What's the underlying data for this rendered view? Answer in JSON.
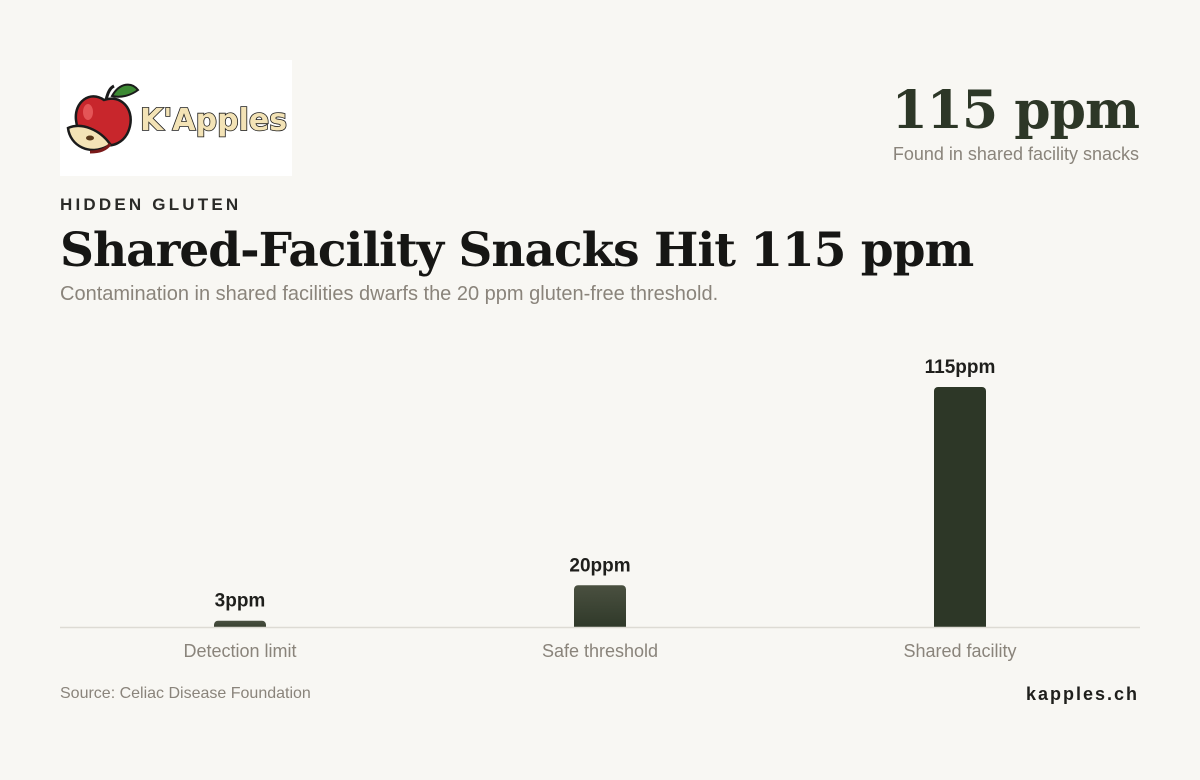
{
  "brand": {
    "logo_text": "K'Apples",
    "site": "kapples.ch"
  },
  "header": {
    "kicker": "HIDDEN GLUTEN",
    "title": "Shared-Facility Snacks Hit 115 ppm",
    "subtitle": "Contamination in shared facilities dwarfs the 20 ppm gluten-free threshold."
  },
  "stat": {
    "value": "115 ppm",
    "caption": "Found in shared facility snacks"
  },
  "footer": {
    "source": "Source: Celiac Disease Foundation"
  },
  "colors": {
    "bar": "#2d3727",
    "bar_muted": "#4a5040",
    "axis": "#dddbd4",
    "label": "#8a847b"
  },
  "chart_data": {
    "type": "bar",
    "categories": [
      "Detection limit",
      "Safe threshold",
      "Shared facility"
    ],
    "values": [
      3,
      20,
      115
    ],
    "data_labels": [
      "3ppm",
      "20ppm",
      "115ppm"
    ],
    "unit": "ppm",
    "ylim": [
      0,
      115
    ],
    "grid": false,
    "legend": "none"
  }
}
